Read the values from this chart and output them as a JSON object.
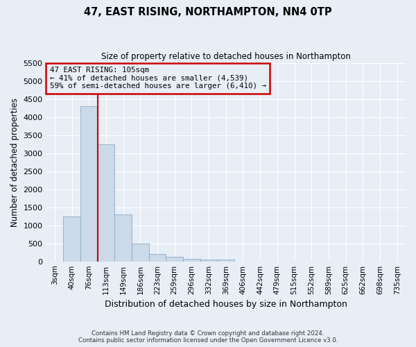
{
  "title": "47, EAST RISING, NORTHAMPTON, NN4 0TP",
  "subtitle": "Size of property relative to detached houses in Northampton",
  "xlabel": "Distribution of detached houses by size in Northampton",
  "ylabel": "Number of detached properties",
  "footer_line1": "Contains HM Land Registry data © Crown copyright and database right 2024.",
  "footer_line2": "Contains public sector information licensed under the Open Government Licence v3.0.",
  "annotation_line1": "47 EAST RISING: 105sqm",
  "annotation_line2": "← 41% of detached houses are smaller (4,539)",
  "annotation_line3": "59% of semi-detached houses are larger (6,410) →",
  "bar_color": "#ccd9e8",
  "bar_edge_color": "#8aacc8",
  "vline_color": "#cc0000",
  "annotation_box_edge_color": "#cc0000",
  "background_color": "#e8eef6",
  "grid_color": "#ffffff",
  "categories": [
    "3sqm",
    "40sqm",
    "76sqm",
    "113sqm",
    "149sqm",
    "186sqm",
    "223sqm",
    "259sqm",
    "296sqm",
    "332sqm",
    "369sqm",
    "406sqm",
    "442sqm",
    "479sqm",
    "515sqm",
    "552sqm",
    "589sqm",
    "625sqm",
    "662sqm",
    "698sqm",
    "735sqm"
  ],
  "bar_values": [
    0,
    1250,
    4300,
    3250,
    1300,
    500,
    200,
    120,
    80,
    60,
    55,
    0,
    0,
    0,
    0,
    0,
    0,
    0,
    0,
    0,
    0
  ],
  "ylim": [
    0,
    5500
  ],
  "yticks": [
    0,
    500,
    1000,
    1500,
    2000,
    2500,
    3000,
    3500,
    4000,
    4500,
    5000,
    5500
  ],
  "vline_position": 2.5,
  "bar_width": 1.0
}
